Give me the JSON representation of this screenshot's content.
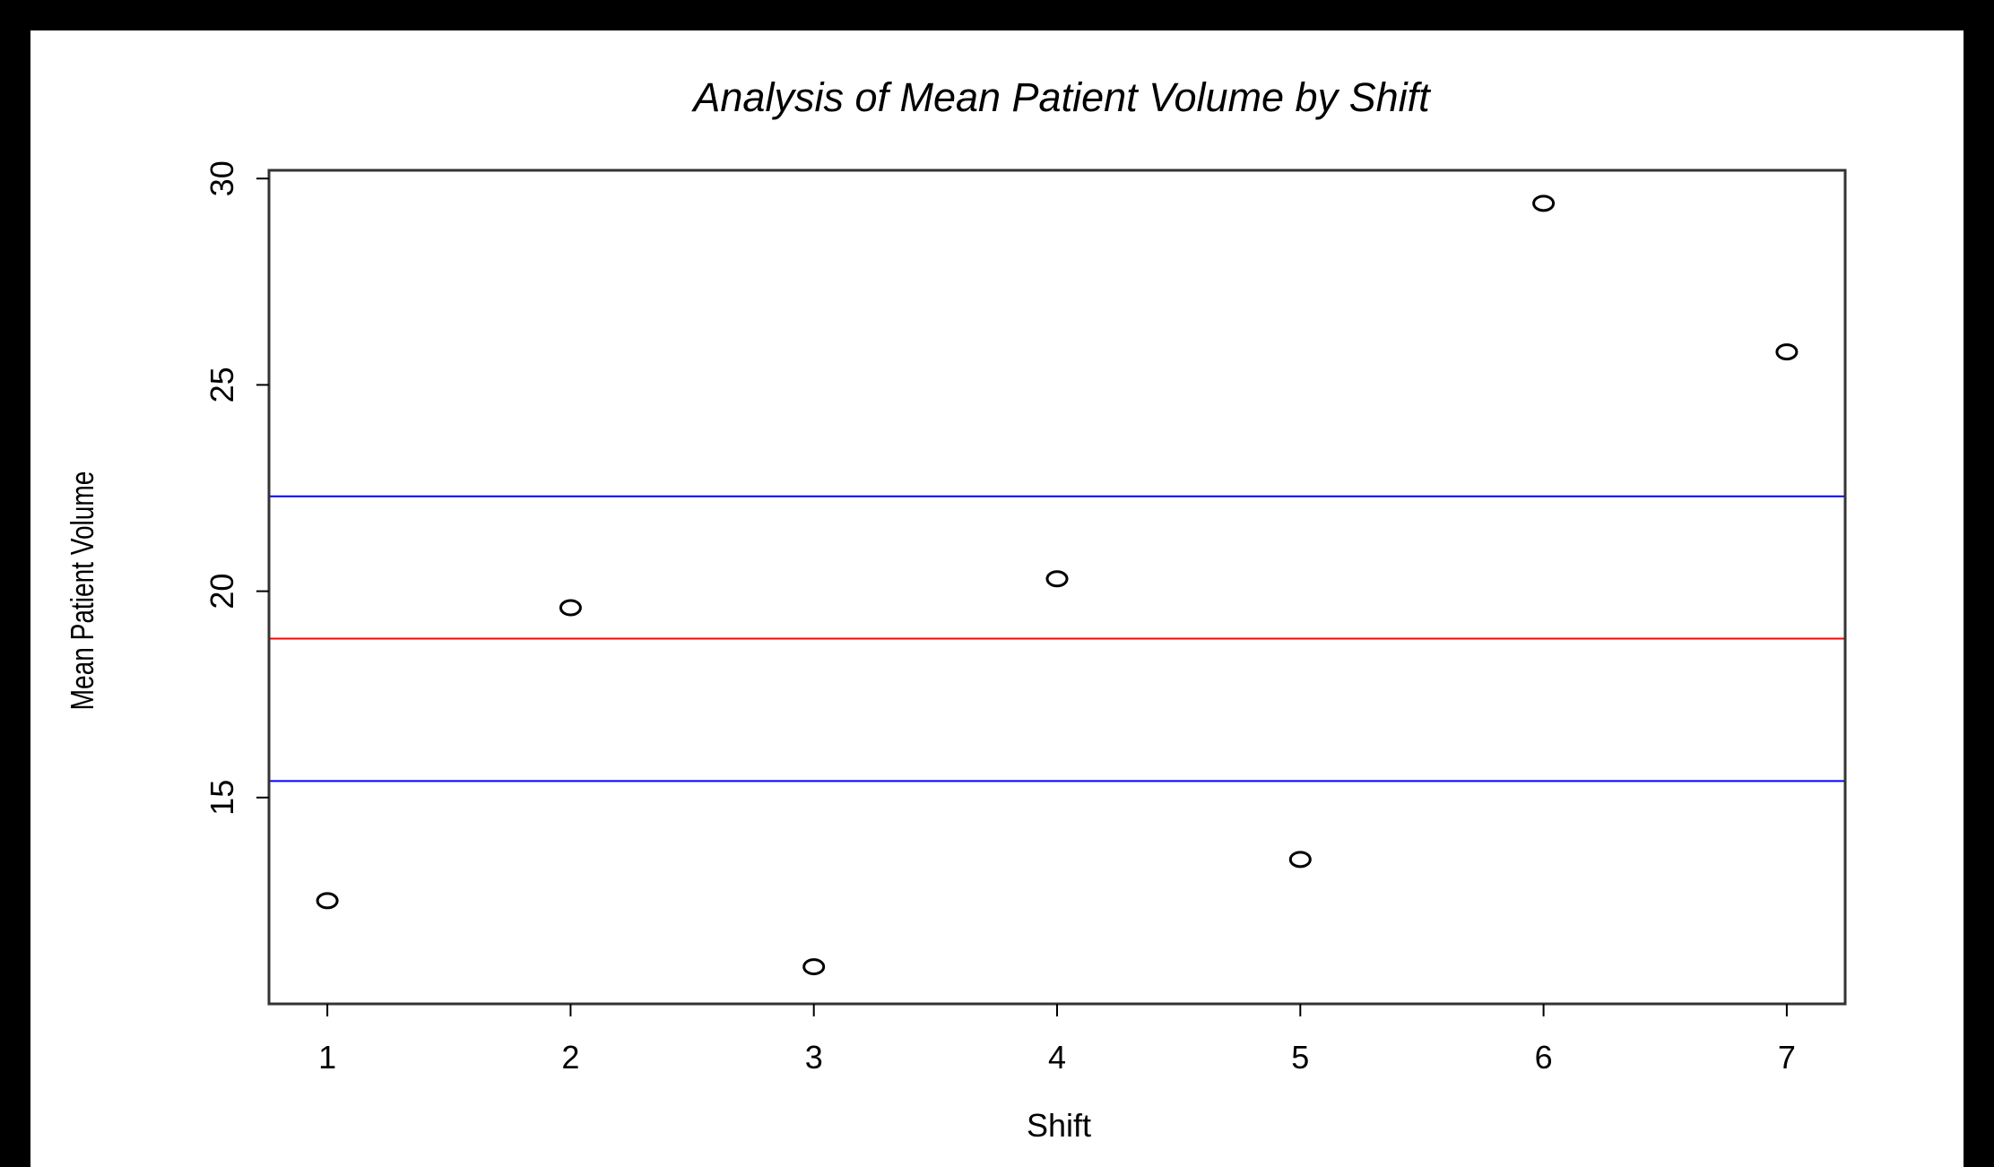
{
  "chart_data": {
    "type": "scatter",
    "title": "Analysis of Mean Patient Volume by Shift",
    "xlabel": "Shift",
    "ylabel": "Mean Patient Volume",
    "x": [
      1,
      2,
      3,
      4,
      5,
      6,
      7
    ],
    "y": [
      12.5,
      19.6,
      10.9,
      20.3,
      13.5,
      29.4,
      25.8
    ],
    "xlim": [
      0.76,
      7.24
    ],
    "ylim": [
      10.0,
      30.2
    ],
    "x_ticks": [
      "1",
      "2",
      "3",
      "4",
      "5",
      "6",
      "7"
    ],
    "y_ticks": [
      "15",
      "20",
      "25",
      "30"
    ],
    "y_tick_values": [
      15,
      20,
      25,
      30
    ],
    "hlines": [
      {
        "y": 22.3,
        "color": "#0000ff"
      },
      {
        "y": 18.85,
        "color": "#ff0000"
      },
      {
        "y": 15.4,
        "color": "#0000ff"
      }
    ],
    "grid": false,
    "background": "#000000",
    "plot_background": "#ffffff"
  }
}
